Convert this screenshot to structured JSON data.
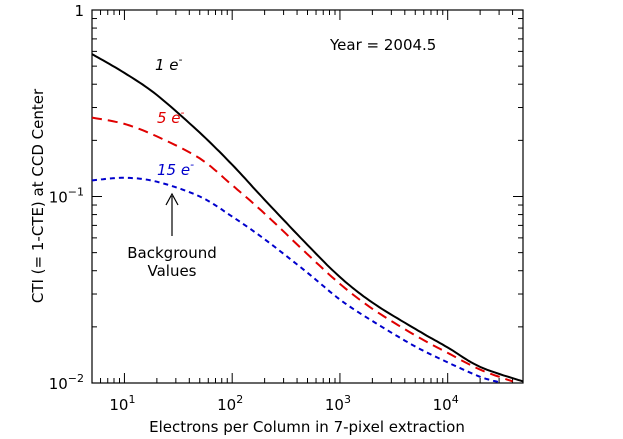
{
  "chart_data": {
    "type": "line",
    "title": "",
    "xlabel": "Electrons per Column in 7-pixel extraction",
    "ylabel": "CTI (= 1-CTE) at CCD Center",
    "xscale": "log",
    "yscale": "log",
    "xlim": [
      5,
      50000
    ],
    "ylim": [
      0.01,
      1
    ],
    "x_ticks": [
      {
        "base": "10",
        "exp": "1",
        "value": 10
      },
      {
        "base": "10",
        "exp": "2",
        "value": 100
      },
      {
        "base": "10",
        "exp": "3",
        "value": 1000
      },
      {
        "base": "10",
        "exp": "4",
        "value": 10000
      }
    ],
    "y_ticks": [
      {
        "base": "1",
        "exp": "",
        "value": 1
      },
      {
        "base": "10",
        "exp": "−1",
        "value": 0.1
      },
      {
        "base": "10",
        "exp": "−2",
        "value": 0.01
      }
    ],
    "series": [
      {
        "name": "1 e-",
        "label_main": "1 e",
        "label_sup": "-",
        "color": "#000000",
        "style": "solid",
        "x": [
          5,
          10,
          20,
          50,
          100,
          200,
          500,
          1000,
          2000,
          5000,
          10000,
          20000,
          50000
        ],
        "y": [
          0.58,
          0.46,
          0.35,
          0.22,
          0.148,
          0.096,
          0.055,
          0.037,
          0.027,
          0.0195,
          0.0155,
          0.0122,
          0.0102
        ]
      },
      {
        "name": "5 e-",
        "label_main": "5 e",
        "label_sup": "-",
        "color": "#e00000",
        "style": "dashed",
        "x": [
          5,
          10,
          20,
          50,
          100,
          200,
          500,
          1000,
          2000,
          5000,
          10000,
          20000,
          40000
        ],
        "y": [
          0.265,
          0.245,
          0.21,
          0.16,
          0.115,
          0.081,
          0.049,
          0.034,
          0.025,
          0.018,
          0.0145,
          0.0118,
          0.0102
        ]
      },
      {
        "name": "15 e-",
        "label_main": "15 e",
        "label_sup": "-",
        "color": "#0000cc",
        "style": "dotted",
        "x": [
          5,
          10,
          20,
          50,
          100,
          200,
          500,
          1000,
          2000,
          5000,
          10000,
          20000,
          30000
        ],
        "y": [
          0.122,
          0.126,
          0.12,
          0.1,
          0.078,
          0.059,
          0.039,
          0.028,
          0.0215,
          0.0157,
          0.0129,
          0.0108,
          0.0101
        ]
      }
    ],
    "annotations": {
      "year_label": "Year = 2004.5",
      "background_line1": "Background",
      "background_line2": "Values"
    },
    "grid": false,
    "legend": "inline labels on curves"
  }
}
